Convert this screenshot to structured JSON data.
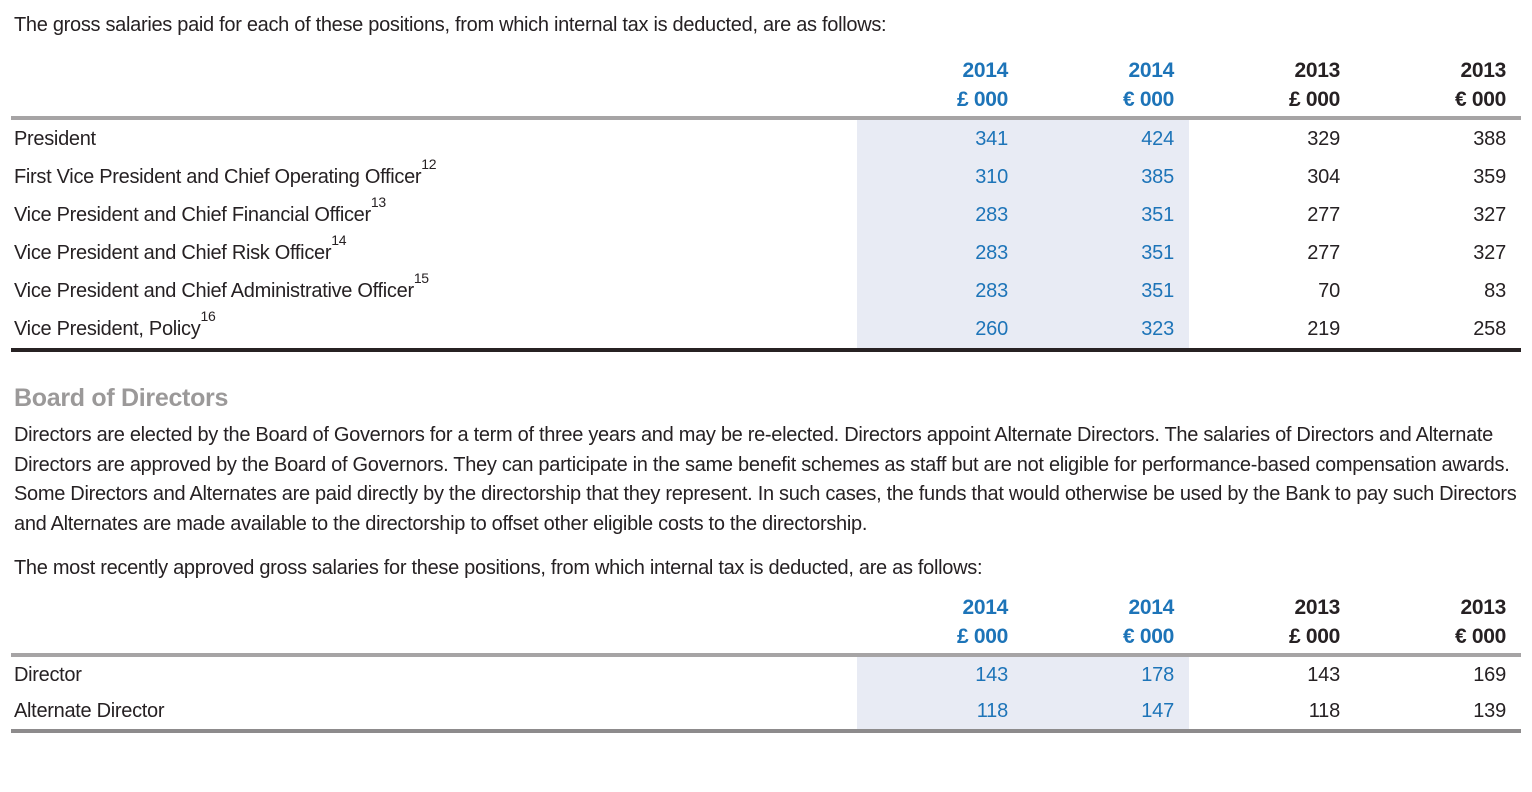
{
  "colors": {
    "accent_blue": "#1d74b8",
    "highlight_bg": "#e8ebf4",
    "rule_gray": "#a6a4a5",
    "rule_gray_light": "#8d8b8c",
    "rule_dark": "#272223",
    "heading_gray": "#9b9999",
    "text": "#262123"
  },
  "intro1": "The gross salaries paid for each of these positions, from which internal tax is deducted, are as follows:",
  "salary_table": {
    "columns": [
      {
        "year": "2014",
        "unit": "£ 000"
      },
      {
        "year": "2014",
        "unit": "€ 000"
      },
      {
        "year": "2013",
        "unit": "£ 000"
      },
      {
        "year": "2013",
        "unit": "€ 000"
      }
    ],
    "rows": [
      {
        "label": "President",
        "footnote": "",
        "values": [
          "341",
          "424",
          "329",
          "388"
        ]
      },
      {
        "label": "First Vice President and Chief Operating Officer",
        "footnote": "12",
        "values": [
          "310",
          "385",
          "304",
          "359"
        ]
      },
      {
        "label": "Vice President and Chief Financial Officer",
        "footnote": "13",
        "values": [
          "283",
          "351",
          "277",
          "327"
        ]
      },
      {
        "label": "Vice President and Chief Risk Officer",
        "footnote": "14",
        "values": [
          "283",
          "351",
          "277",
          "327"
        ]
      },
      {
        "label": "Vice President and Chief Administrative Officer",
        "footnote": "15",
        "values": [
          "283",
          "351",
          "70",
          "83"
        ]
      },
      {
        "label": "Vice President, Policy",
        "footnote": "16",
        "values": [
          "260",
          "323",
          "219",
          "258"
        ]
      }
    ]
  },
  "section": {
    "heading": "Board of Directors",
    "body": "Directors are elected by the Board of Governors for a term of three years and may be re-elected. Directors appoint Alternate Directors. The salaries of Directors and Alternate Directors are approved by the Board of Governors. They can participate in the same benefit schemes as staff but are not eligible for performance-based compensation awards. Some Directors and Alternates are paid directly by the directorship that they represent. In such cases, the funds that would otherwise be used by the Bank to pay such Directors and Alternates are made available to the directorship to offset other eligible costs to the directorship."
  },
  "intro2": "The most recently approved gross salaries for these positions, from which internal tax is deducted, are as follows:",
  "director_table": {
    "columns": [
      {
        "year": "2014",
        "unit": "£ 000"
      },
      {
        "year": "2014",
        "unit": "€ 000"
      },
      {
        "year": "2013",
        "unit": "£ 000"
      },
      {
        "year": "2013",
        "unit": "€ 000"
      }
    ],
    "rows": [
      {
        "label": "Director",
        "footnote": "",
        "values": [
          "143",
          "178",
          "143",
          "169"
        ]
      },
      {
        "label": "Alternate Director",
        "footnote": "",
        "values": [
          "118",
          "147",
          "118",
          "139"
        ]
      }
    ]
  }
}
